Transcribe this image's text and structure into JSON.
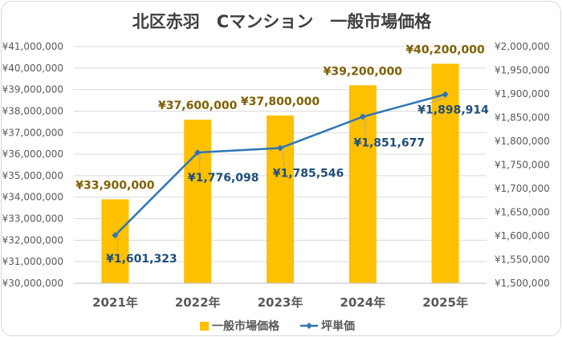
{
  "chart_data": {
    "type": "bar",
    "title": "北区赤羽　Cマンション　一般市場価格",
    "categories": [
      "2021年",
      "2022年",
      "2023年",
      "2024年",
      "2025年"
    ],
    "series": [
      {
        "name": "一般市場価格",
        "kind": "bar",
        "axis": "left",
        "color": "#FFC000",
        "labelColor": "#7F6000",
        "values": [
          33900000,
          37600000,
          37800000,
          39200000,
          40200000
        ],
        "labels": [
          "¥33,900,000",
          "¥37,600,000",
          "¥37,800,000",
          "¥39,200,000",
          "¥40,200,000"
        ]
      },
      {
        "name": "坪単価",
        "kind": "line",
        "axis": "right",
        "color": "#2E75B6",
        "labelColor": "#1F4E79",
        "values": [
          1601323,
          1776098,
          1785546,
          1851677,
          1898914
        ],
        "labels": [
          "¥1,601,323",
          "¥1,776,098",
          "¥1,785,546",
          "¥1,851,677",
          "¥1,898,914"
        ]
      }
    ],
    "yAxisLeft": {
      "min": 30000000,
      "max": 41000000,
      "step": 1000000,
      "ticks": [
        "¥30,000,000",
        "¥31,000,000",
        "¥32,000,000",
        "¥33,000,000",
        "¥34,000,000",
        "¥35,000,000",
        "¥36,000,000",
        "¥37,000,000",
        "¥38,000,000",
        "¥39,000,000",
        "¥40,000,000",
        "¥41,000,000"
      ]
    },
    "yAxisRight": {
      "min": 1500000,
      "max": 2000000,
      "step": 50000,
      "ticks": [
        "¥1,500,000",
        "¥1,550,000",
        "¥1,600,000",
        "¥1,650,000",
        "¥1,700,000",
        "¥1,750,000",
        "¥1,800,000",
        "¥1,850,000",
        "¥1,900,000",
        "¥1,950,000",
        "¥2,000,000"
      ]
    },
    "grid": true,
    "legendPosition": "bottom",
    "xlabel": "",
    "ylabel": ""
  },
  "colors": {
    "axisText": "#595959",
    "grid": "#d9d9d9",
    "title": "#404040"
  }
}
